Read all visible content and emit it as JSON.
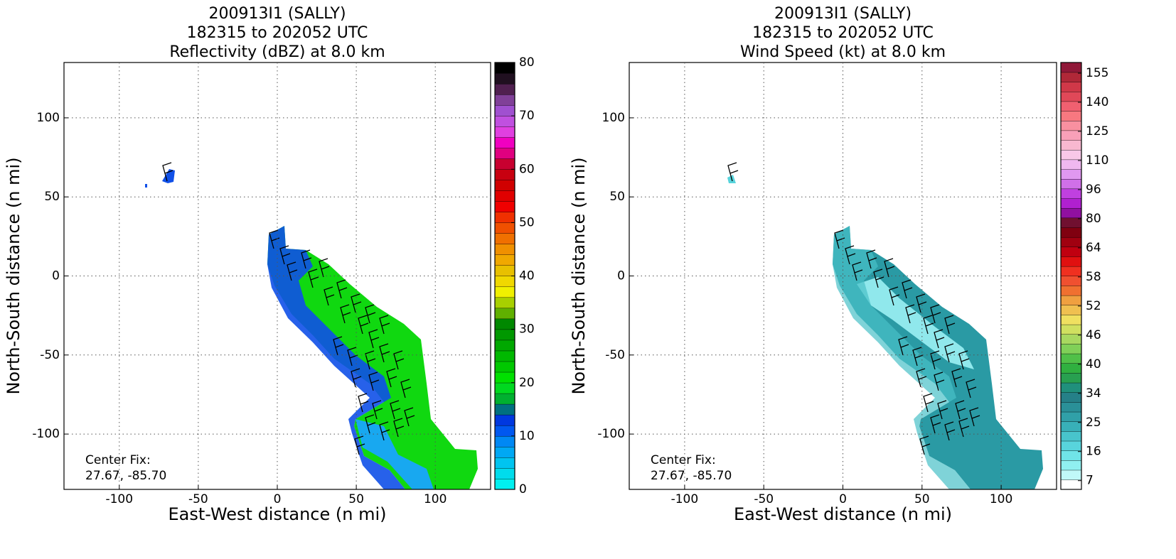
{
  "chart_data": [
    {
      "type": "radar_map",
      "title": [
        "200913I1 (SALLY)",
        "182315 to 202052 UTC",
        "Reflectivity (dBZ) at 8.0 km"
      ],
      "xlabel": "East-West distance (n mi)",
      "ylabel": "North-South distance (n mi)",
      "xlim": [
        -135,
        135
      ],
      "ylim": [
        -135,
        135
      ],
      "xticks": [
        -100,
        -50,
        0,
        50,
        100
      ],
      "yticks": [
        -100,
        -50,
        0,
        50,
        100
      ],
      "grid": true,
      "annotation": [
        "Center Fix:",
        "27.67, -85.70"
      ],
      "colorbar": {
        "lim": [
          0,
          80
        ],
        "ticks": [
          0,
          10,
          20,
          30,
          40,
          50,
          60,
          70,
          80
        ],
        "colors": [
          "#00f0f0",
          "#00dcec",
          "#00c4f0",
          "#00a8f4",
          "#0088f4",
          "#0058f0",
          "#0038e0",
          "#007080",
          "#00b030",
          "#00d820",
          "#00e000",
          "#00c800",
          "#00b800",
          "#00a800",
          "#009800",
          "#008800",
          "#60b000",
          "#a8d000",
          "#f0f000",
          "#f0d800",
          "#e8c000",
          "#f0a800",
          "#f09000",
          "#f07000",
          "#f05000",
          "#f03000",
          "#f00000",
          "#e00000",
          "#d00000",
          "#c80010",
          "#c80030",
          "#e00080",
          "#f000c0",
          "#e040e0",
          "#c050e0",
          "#a050d0",
          "#804098",
          "#502050",
          "#201020",
          "#000000"
        ]
      }
    },
    {
      "type": "radar_map",
      "title": [
        "200913I1 (SALLY)",
        "182315 to 202052 UTC",
        "Wind Speed (kt) at 8.0 km"
      ],
      "xlabel": "East-West distance (n mi)",
      "ylabel": "North-South distance (n mi)",
      "xlim": [
        -135,
        135
      ],
      "ylim": [
        -135,
        135
      ],
      "xticks": [
        -100,
        -50,
        0,
        50,
        100
      ],
      "yticks": [
        -100,
        -50,
        0,
        50,
        100
      ],
      "grid": true,
      "annotation": [
        "Center Fix:",
        "27.67, -85.70"
      ],
      "colorbar": {
        "spacing": "even",
        "ticks": [
          7,
          16,
          25,
          34,
          40,
          46,
          52,
          58,
          64,
          80,
          96,
          110,
          125,
          140,
          155
        ],
        "colors": [
          "#ffffff",
          "#c0f8f8",
          "#90f0f0",
          "#70e4e8",
          "#58d4dc",
          "#48c4cc",
          "#38b0b8",
          "#30a0a8",
          "#2a9098",
          "#258088",
          "#20907c",
          "#28a050",
          "#30b040",
          "#50c048",
          "#80d058",
          "#a8d860",
          "#d0e060",
          "#f0e060",
          "#f0c050",
          "#f0a040",
          "#f07030",
          "#f05030",
          "#f03020",
          "#e01010",
          "#c00010",
          "#a00010",
          "#800010",
          "#701030",
          "#9010a0",
          "#b020d0",
          "#c040e0",
          "#d070e8",
          "#e098f0",
          "#f0b8f0",
          "#f8c8e8",
          "#f8b8d0",
          "#f8a0b8",
          "#f890a0",
          "#f87880",
          "#f06070",
          "#e04858",
          "#d03848",
          "#b02838",
          "#901838"
        ]
      }
    }
  ]
}
